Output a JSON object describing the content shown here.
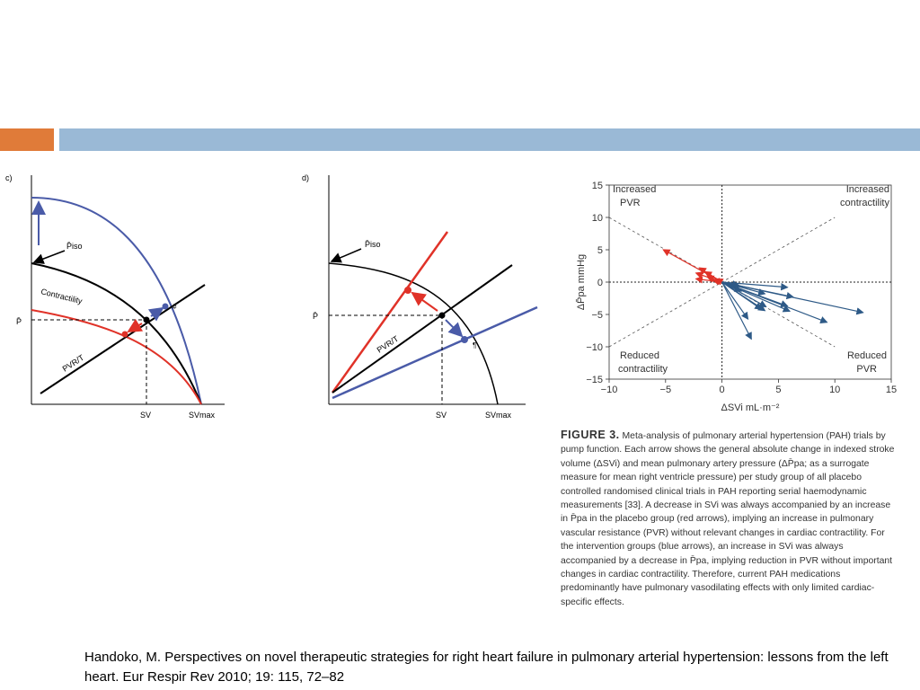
{
  "colors": {
    "accent_orange": "#E07B39",
    "accent_blue": "#9AB9D6",
    "red": "#E03228",
    "blue": "#4A5BA8",
    "dark_blue": "#2E5A87"
  },
  "panel_c": {
    "label": "c)",
    "p_iso": "P̄iso",
    "contractility": "Contractility",
    "pvr_t": "PVR/T",
    "p_bar": "P̄",
    "sv": "SV",
    "sv_max": "SVmax",
    "marker": "#"
  },
  "panel_d": {
    "label": "d)",
    "p_iso": "P̄iso",
    "pvr_t": "PVR/T",
    "p_bar": "P̄",
    "sv": "SV",
    "sv_max": "SVmax",
    "marker": "¶"
  },
  "chart_data": {
    "type": "scatter",
    "xlabel": "ΔSVi mL·m⁻²",
    "ylabel": "ΔP̄pa mmHg",
    "xlim": [
      -10,
      15
    ],
    "ylim": [
      -15,
      15
    ],
    "x_ticks": [
      "−10",
      "−5",
      "0",
      "5",
      "10",
      "15"
    ],
    "y_ticks": [
      "15",
      "10",
      "5",
      "0",
      "−5",
      "−10",
      "−15"
    ],
    "annotations": {
      "top_left": [
        "Increased",
        "PVR"
      ],
      "top_right": [
        "Increased",
        "contractility"
      ],
      "bottom_left": [
        "Reduced",
        "contractility"
      ],
      "bottom_right": [
        "Reduced",
        "PVR"
      ]
    },
    "series": [
      {
        "color": "#E03228",
        "arrows": [
          [
            -5.2,
            5.0
          ],
          [
            -2.0,
            2.2
          ],
          [
            -2.3,
            1.4
          ],
          [
            -1.5,
            1.6
          ],
          [
            -2.3,
            0.5
          ],
          [
            -1.3,
            0.8
          ],
          [
            -0.8,
            0.3
          ],
          [
            -0.5,
            0.5
          ]
        ]
      },
      {
        "color": "#2E5A87",
        "arrows": [
          [
            12.5,
            -4.7
          ],
          [
            9.3,
            -6.2
          ],
          [
            6.3,
            -2.3
          ],
          [
            6.0,
            -4.5
          ],
          [
            5.8,
            -3.7
          ],
          [
            3.9,
            -3.8
          ],
          [
            3.8,
            -4.4
          ],
          [
            3.5,
            -4.2
          ],
          [
            2.6,
            -8.8
          ],
          [
            5.8,
            -0.8
          ],
          [
            3.8,
            -1.8
          ],
          [
            1.5,
            -0.5
          ],
          [
            2.3,
            -5.7
          ],
          [
            1.7,
            -1.4
          ]
        ]
      }
    ]
  },
  "caption": {
    "figure_label": "FIGURE 3.",
    "text": " Meta-analysis of pulmonary arterial hypertension (PAH) trials by pump function. Each arrow shows the general absolute change in indexed stroke volume (ΔSVi) and mean pulmonary artery pressure (ΔP̄pa; as a surrogate measure for mean right ventricle pressure) per study group of all placebo controlled randomised clinical trials in PAH reporting serial haemodynamic measurements [33]. A decrease in SVi was always accompanied by an increase in P̄pa in the placebo group (red arrows), implying an increase in pulmonary vascular resistance (PVR) without relevant changes in cardiac contractility. For the intervention groups (blue arrows), an increase in SVi was always accompanied by a decrease in P̄pa, implying reduction in PVR without important changes in cardiac contractility. Therefore, current PAH medications predominantly have pulmonary vasodilating effects with only limited cardiac-specific effects."
  },
  "citation": "Handoko, M. Perspectives on novel therapeutic strategies for right heart failure in pulmonary arterial hypertension: lessons from the left heart. Eur Respir Rev 2010; 19: 115, 72–82"
}
